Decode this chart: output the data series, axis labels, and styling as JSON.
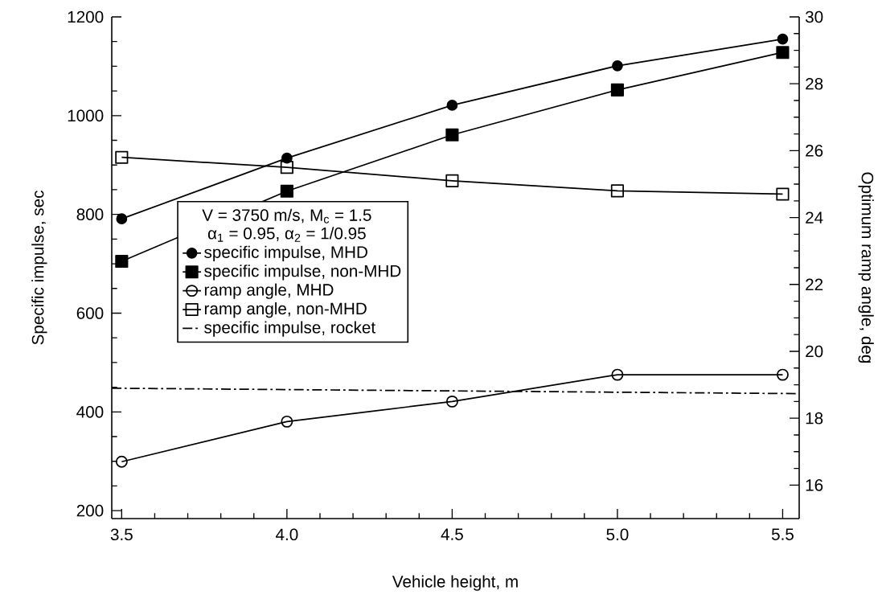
{
  "chart_data": {
    "type": "line",
    "xlabel": "Vehicle height, m",
    "ylabel": "Specific impulse, sec",
    "y2label": "Optimum ramp angle, deg",
    "legend_title": "V = 3750 m/s, M$_{c}$ = 1.5 α$_{1}$ = 0.95, α$_{2}$ = 1/0.95",
    "x": [
      3.5,
      4.0,
      4.5,
      5.0,
      5.5
    ],
    "series": [
      {
        "name": "specific impulse, MHD",
        "color": "#000000",
        "marker": "circle",
        "line_style": "solid",
        "values": [
          791,
          914,
          1021,
          1101,
          1155
        ]
      },
      {
        "name": "specific impulse, non-MHD",
        "color": "#000000",
        "marker": "square",
        "line_style": "solid",
        "values": [
          705,
          847,
          961,
          1052,
          1128
        ]
      },
      {
        "name": "ramp angle, MHD",
        "color": "#000000",
        "marker": "circle-open",
        "line_style": "solid",
        "axis": "y2",
        "values": [
          16.7,
          17.9,
          18.5,
          19.3,
          19.3
        ]
      },
      {
        "name": "ramp angle, non-MHD",
        "color": "#000000",
        "marker": "square-open",
        "line_style": "solid",
        "axis": "y2",
        "values": [
          25.8,
          25.5,
          25.1,
          24.8,
          24.7
        ]
      },
      {
        "name": "specific impulse, rocket",
        "color": "#000000",
        "marker": "none",
        "line_style": "dashdot",
        "x": [
          3.47,
          5.55
        ],
        "values": [
          448,
          437
        ]
      }
    ],
    "xlim": [
      3.47,
      5.55
    ],
    "xticks": [
      3.5,
      {
        "value": 4.0,
        "label": "4.0"
      },
      4.5,
      {
        "value": 5.0,
        "label": "5.0"
      },
      5.5
    ],
    "ylim": [
      184,
      1200
    ],
    "yticks": [
      200,
      400,
      600,
      800,
      1000,
      1200
    ],
    "y2lim": [
      15,
      30
    ],
    "y2ticks": [
      16,
      18,
      20,
      22,
      24,
      26,
      28,
      30
    ],
    "legend": "center left",
    "grid": false
  }
}
